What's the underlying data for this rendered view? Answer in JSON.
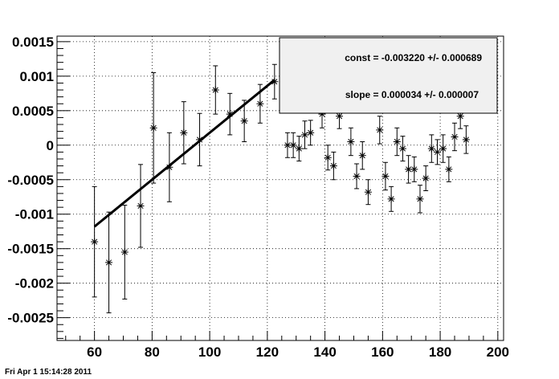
{
  "chart_data": {
    "type": "scatter",
    "x_ticks": [
      60,
      80,
      100,
      120,
      140,
      160,
      180,
      200
    ],
    "y_ticks": [
      -0.0025,
      -0.002,
      -0.0015,
      -0.001,
      -0.0005,
      0,
      0.0005,
      0.001,
      0.0015
    ],
    "x_tick_labels": [
      "60",
      "80",
      "100",
      "120",
      "140",
      "160",
      "180",
      "200"
    ],
    "y_tick_labels": [
      "-0.0025",
      "-0.002",
      "-0.0015",
      "-0.001",
      "-0.0005",
      "0",
      "0.0005",
      "0.001",
      "0.0015"
    ],
    "xlim": [
      47,
      202
    ],
    "ylim": [
      -0.00283,
      0.00158
    ],
    "grid": true,
    "marker": "asterisk",
    "series": [
      {
        "points": [
          {
            "x": 60,
            "y": -0.0014,
            "err": 0.0008
          },
          {
            "x": 65,
            "y": -0.0017,
            "err": 0.00073
          },
          {
            "x": 70.5,
            "y": -0.00155,
            "err": 0.00068
          },
          {
            "x": 76,
            "y": -0.00088,
            "err": 0.0006
          },
          {
            "x": 80.5,
            "y": 0.00025,
            "err": 0.0008
          },
          {
            "x": 86,
            "y": -0.00032,
            "err": 0.0005
          },
          {
            "x": 91,
            "y": 0.00018,
            "err": 0.00045
          },
          {
            "x": 96.5,
            "y": 8e-05,
            "err": 0.00038
          },
          {
            "x": 102,
            "y": 0.0008,
            "err": 0.00035
          },
          {
            "x": 107,
            "y": 0.00045,
            "err": 0.0003
          },
          {
            "x": 112,
            "y": 0.00035,
            "err": 0.0003
          },
          {
            "x": 117.5,
            "y": 0.0006,
            "err": 0.00028
          },
          {
            "x": 122.5,
            "y": 0.00092,
            "err": 0.00025
          },
          {
            "x": 127,
            "y": 0.0,
            "err": 0.00018
          },
          {
            "x": 129,
            "y": 0.0,
            "err": 0.00018
          },
          {
            "x": 131,
            "y": -5e-05,
            "err": 0.00018
          },
          {
            "x": 133,
            "y": 0.00015,
            "err": 0.0002
          },
          {
            "x": 135,
            "y": 0.00018,
            "err": 0.00018
          },
          {
            "x": 139,
            "y": 0.00045,
            "err": 0.0002
          },
          {
            "x": 141,
            "y": -0.00018,
            "err": 0.00018
          },
          {
            "x": 143,
            "y": -0.0003,
            "err": 0.0002
          },
          {
            "x": 145,
            "y": 0.00042,
            "err": 0.00018
          },
          {
            "x": 149,
            "y": 5e-05,
            "err": 0.0002
          },
          {
            "x": 151,
            "y": -0.00045,
            "err": 0.00018
          },
          {
            "x": 153,
            "y": -0.00015,
            "err": 0.0002
          },
          {
            "x": 155,
            "y": -0.00068,
            "err": 0.00018
          },
          {
            "x": 159,
            "y": 0.00022,
            "err": 0.0002
          },
          {
            "x": 161,
            "y": -0.00045,
            "err": 0.0002
          },
          {
            "x": 163,
            "y": -0.00078,
            "err": 0.00018
          },
          {
            "x": 165,
            "y": 5e-05,
            "err": 0.0002
          },
          {
            "x": 167,
            "y": -5e-05,
            "err": 0.00018
          },
          {
            "x": 169,
            "y": -0.00035,
            "err": 0.0002
          },
          {
            "x": 171,
            "y": -0.00035,
            "err": 0.00018
          },
          {
            "x": 173,
            "y": -0.00078,
            "err": 0.0002
          },
          {
            "x": 175,
            "y": -0.00048,
            "err": 0.00018
          },
          {
            "x": 177,
            "y": -5e-05,
            "err": 0.0002
          },
          {
            "x": 179,
            "y": -0.0001,
            "err": 0.00018
          },
          {
            "x": 181,
            "y": -5e-05,
            "err": 0.0002
          },
          {
            "x": 183,
            "y": -0.00035,
            "err": 0.00018
          },
          {
            "x": 185,
            "y": 0.00012,
            "err": 0.0002
          },
          {
            "x": 187,
            "y": 0.00042,
            "err": 0.00018
          },
          {
            "x": 189,
            "y": 8e-05,
            "err": 0.0002
          }
        ]
      }
    ],
    "fit": {
      "type": "line",
      "x_range": [
        60,
        122.5
      ],
      "const": -0.00322,
      "slope": 3.4e-05
    },
    "stats_box": {
      "lines": [
        "const = -0.003220 +/- 0.000689",
        "slope = 0.000034 +/- 0.000007"
      ],
      "background": "#f0f0f0",
      "placement": "top-right"
    },
    "colors": {
      "frame": "#000000",
      "grid": "#000000",
      "points": "#000000",
      "fit": "#000000"
    }
  },
  "footer": {
    "timestamp": "Fri Apr  1 15:14:28 2011"
  }
}
